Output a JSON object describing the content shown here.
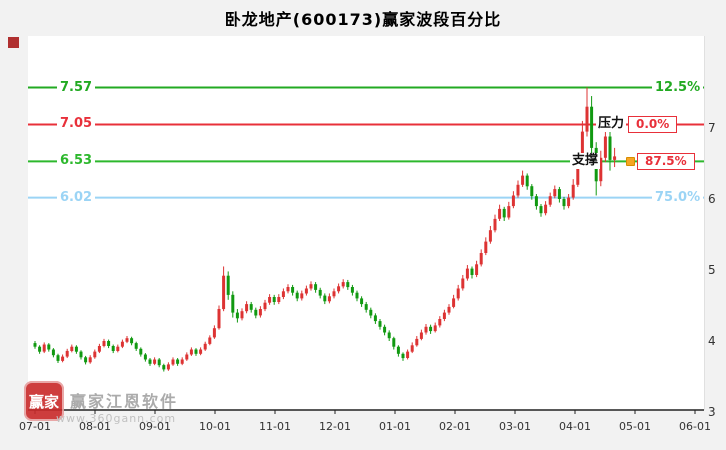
{
  "window": {
    "title": "卧龙地产(600173)赢家波段百分比"
  },
  "watermark": {
    "logo_text": "赢家",
    "brand": "赢家江恩软件",
    "url": "www.360gann.com"
  },
  "chart_data": {
    "type": "candlestick",
    "title": "卧龙地产(600173)赢家波段百分比",
    "x_labels": [
      "07-01",
      "08-01",
      "09-01",
      "10-01",
      "11-01",
      "12-01",
      "01-01",
      "02-01",
      "03-01",
      "04-01",
      "05-01",
      "06-01"
    ],
    "y_axis": {
      "side": "right",
      "ticks": [
        7,
        6,
        5,
        4,
        3
      ],
      "min": 3,
      "max": 7.8
    },
    "grid": "off",
    "colors": {
      "up": "#dd3333",
      "down": "#119911",
      "axis": "#222222"
    },
    "levels": [
      {
        "price": 7.57,
        "label": "7.57",
        "pct": "12.5%",
        "color": "#22aa22",
        "name": "",
        "boxed": false
      },
      {
        "price": 7.05,
        "label": "7.05",
        "pct": "0.0%",
        "color": "#e8303a",
        "name": "压力",
        "boxed": true
      },
      {
        "price": 6.53,
        "label": "6.53",
        "pct": "87.5%",
        "color": "#2db82d",
        "name": "支撑",
        "boxed": true,
        "box_color": "#e8303a"
      },
      {
        "price": 6.02,
        "label": "6.02",
        "pct": "75.0%",
        "color": "#9bd4f5",
        "name": "",
        "boxed": false
      }
    ],
    "marker_color": "#f5a623",
    "candles_note": "OHLC values approximated from pixels; ~13 bars per month from 07-01 to mid 04",
    "candles": [
      [
        3.97,
        4.0,
        3.89,
        3.92
      ],
      [
        3.92,
        3.94,
        3.82,
        3.85
      ],
      [
        3.85,
        3.98,
        3.83,
        3.95
      ],
      [
        3.95,
        3.97,
        3.85,
        3.88
      ],
      [
        3.88,
        3.9,
        3.77,
        3.8
      ],
      [
        3.8,
        3.82,
        3.69,
        3.72
      ],
      [
        3.72,
        3.81,
        3.7,
        3.78
      ],
      [
        3.78,
        3.89,
        3.76,
        3.86
      ],
      [
        3.86,
        3.95,
        3.84,
        3.92
      ],
      [
        3.92,
        3.94,
        3.82,
        3.85
      ],
      [
        3.85,
        3.87,
        3.74,
        3.77
      ],
      [
        3.77,
        3.79,
        3.67,
        3.7
      ],
      [
        3.7,
        3.8,
        3.68,
        3.77
      ],
      [
        3.77,
        3.88,
        3.75,
        3.85
      ],
      [
        3.85,
        3.96,
        3.83,
        3.93
      ],
      [
        3.93,
        4.03,
        3.91,
        4.0
      ],
      [
        4.0,
        4.02,
        3.9,
        3.93
      ],
      [
        3.93,
        3.95,
        3.83,
        3.86
      ],
      [
        3.86,
        3.95,
        3.84,
        3.92
      ],
      [
        3.92,
        4.02,
        3.9,
        3.99
      ],
      [
        3.99,
        4.07,
        3.97,
        4.04
      ],
      [
        4.04,
        4.06,
        3.94,
        3.97
      ],
      [
        3.97,
        3.99,
        3.86,
        3.89
      ],
      [
        3.89,
        3.91,
        3.78,
        3.81
      ],
      [
        3.81,
        3.83,
        3.71,
        3.74
      ],
      [
        3.74,
        3.76,
        3.65,
        3.68
      ],
      [
        3.68,
        3.77,
        3.66,
        3.74
      ],
      [
        3.74,
        3.76,
        3.63,
        3.66
      ],
      [
        3.66,
        3.68,
        3.57,
        3.6
      ],
      [
        3.6,
        3.7,
        3.58,
        3.67
      ],
      [
        3.67,
        3.77,
        3.65,
        3.74
      ],
      [
        3.74,
        3.76,
        3.65,
        3.68
      ],
      [
        3.68,
        3.77,
        3.66,
        3.74
      ],
      [
        3.74,
        3.84,
        3.72,
        3.81
      ],
      [
        3.81,
        3.91,
        3.79,
        3.88
      ],
      [
        3.88,
        3.9,
        3.79,
        3.82
      ],
      [
        3.82,
        3.91,
        3.8,
        3.88
      ],
      [
        3.88,
        3.99,
        3.86,
        3.96
      ],
      [
        3.96,
        4.08,
        3.94,
        4.05
      ],
      [
        4.05,
        4.22,
        4.03,
        4.18
      ],
      [
        4.18,
        4.5,
        4.16,
        4.45
      ],
      [
        4.45,
        5.05,
        4.42,
        4.92
      ],
      [
        4.92,
        4.98,
        4.58,
        4.65
      ],
      [
        4.65,
        4.7,
        4.33,
        4.4
      ],
      [
        4.4,
        4.45,
        4.26,
        4.32
      ],
      [
        4.32,
        4.46,
        4.29,
        4.42
      ],
      [
        4.42,
        4.56,
        4.39,
        4.52
      ],
      [
        4.52,
        4.55,
        4.4,
        4.44
      ],
      [
        4.44,
        4.47,
        4.32,
        4.36
      ],
      [
        4.36,
        4.49,
        4.33,
        4.45
      ],
      [
        4.45,
        4.58,
        4.42,
        4.54
      ],
      [
        4.54,
        4.66,
        4.51,
        4.62
      ],
      [
        4.62,
        4.65,
        4.51,
        4.55
      ],
      [
        4.55,
        4.66,
        4.52,
        4.62
      ],
      [
        4.62,
        4.74,
        4.59,
        4.7
      ],
      [
        4.7,
        4.8,
        4.67,
        4.76
      ],
      [
        4.76,
        4.79,
        4.64,
        4.68
      ],
      [
        4.68,
        4.71,
        4.56,
        4.6
      ],
      [
        4.6,
        4.71,
        4.57,
        4.67
      ],
      [
        4.67,
        4.78,
        4.64,
        4.74
      ],
      [
        4.74,
        4.84,
        4.71,
        4.8
      ],
      [
        4.8,
        4.83,
        4.68,
        4.72
      ],
      [
        4.72,
        4.75,
        4.6,
        4.64
      ],
      [
        4.64,
        4.67,
        4.52,
        4.56
      ],
      [
        4.56,
        4.67,
        4.53,
        4.63
      ],
      [
        4.63,
        4.74,
        4.6,
        4.7
      ],
      [
        4.7,
        4.81,
        4.67,
        4.77
      ],
      [
        4.77,
        4.87,
        4.74,
        4.83
      ],
      [
        4.83,
        4.86,
        4.72,
        4.76
      ],
      [
        4.76,
        4.79,
        4.64,
        4.68
      ],
      [
        4.68,
        4.71,
        4.56,
        4.6
      ],
      [
        4.6,
        4.63,
        4.48,
        4.52
      ],
      [
        4.52,
        4.55,
        4.4,
        4.44
      ],
      [
        4.44,
        4.47,
        4.32,
        4.36
      ],
      [
        4.36,
        4.39,
        4.24,
        4.28
      ],
      [
        4.28,
        4.31,
        4.16,
        4.2
      ],
      [
        4.2,
        4.23,
        4.08,
        4.12
      ],
      [
        4.12,
        4.15,
        4.0,
        4.04
      ],
      [
        4.04,
        4.06,
        3.88,
        3.92
      ],
      [
        3.92,
        3.94,
        3.78,
        3.82
      ],
      [
        3.82,
        3.84,
        3.72,
        3.76
      ],
      [
        3.76,
        3.88,
        3.74,
        3.85
      ],
      [
        3.85,
        3.98,
        3.83,
        3.94
      ],
      [
        3.94,
        4.07,
        3.92,
        4.03
      ],
      [
        4.03,
        4.16,
        4.01,
        4.12
      ],
      [
        4.12,
        4.24,
        4.09,
        4.2
      ],
      [
        4.2,
        4.23,
        4.1,
        4.14
      ],
      [
        4.14,
        4.26,
        4.12,
        4.22
      ],
      [
        4.22,
        4.35,
        4.19,
        4.31
      ],
      [
        4.31,
        4.44,
        4.28,
        4.4
      ],
      [
        4.4,
        4.52,
        4.37,
        4.48
      ],
      [
        4.48,
        4.65,
        4.46,
        4.6
      ],
      [
        4.6,
        4.79,
        4.57,
        4.74
      ],
      [
        4.74,
        4.93,
        4.71,
        4.88
      ],
      [
        4.88,
        5.07,
        4.85,
        5.02
      ],
      [
        5.02,
        5.05,
        4.88,
        4.93
      ],
      [
        4.93,
        5.13,
        4.9,
        5.08
      ],
      [
        5.08,
        5.29,
        5.05,
        5.24
      ],
      [
        5.24,
        5.46,
        5.21,
        5.4
      ],
      [
        5.4,
        5.62,
        5.37,
        5.56
      ],
      [
        5.56,
        5.78,
        5.53,
        5.72
      ],
      [
        5.72,
        5.92,
        5.69,
        5.86
      ],
      [
        5.86,
        5.89,
        5.69,
        5.74
      ],
      [
        5.74,
        5.96,
        5.71,
        5.9
      ],
      [
        5.9,
        6.11,
        5.87,
        6.05
      ],
      [
        6.05,
        6.26,
        6.02,
        6.2
      ],
      [
        6.2,
        6.4,
        6.17,
        6.33
      ],
      [
        6.33,
        6.36,
        6.13,
        6.18
      ],
      [
        6.18,
        6.21,
        5.99,
        6.04
      ],
      [
        6.04,
        6.07,
        5.85,
        5.9
      ],
      [
        5.9,
        5.93,
        5.75,
        5.8
      ],
      [
        5.8,
        5.97,
        5.77,
        5.92
      ],
      [
        5.92,
        6.09,
        5.89,
        6.04
      ],
      [
        6.04,
        6.19,
        6.01,
        6.14
      ],
      [
        6.14,
        6.17,
        5.95,
        6.0
      ],
      [
        6.0,
        6.03,
        5.85,
        5.9
      ],
      [
        5.9,
        6.07,
        5.87,
        6.02
      ],
      [
        6.02,
        6.28,
        5.99,
        6.2
      ],
      [
        6.2,
        6.6,
        6.17,
        6.52
      ],
      [
        6.52,
        7.1,
        6.48,
        6.95
      ],
      [
        6.95,
        7.57,
        6.88,
        7.3
      ],
      [
        7.3,
        7.45,
        6.6,
        6.72
      ],
      [
        6.72,
        6.8,
        6.05,
        6.25
      ],
      [
        6.25,
        6.68,
        6.18,
        6.58
      ],
      [
        6.58,
        7.02,
        6.52,
        6.88
      ],
      [
        6.88,
        6.95,
        6.4,
        6.55
      ],
      [
        6.55,
        6.72,
        6.45,
        6.6
      ]
    ]
  }
}
